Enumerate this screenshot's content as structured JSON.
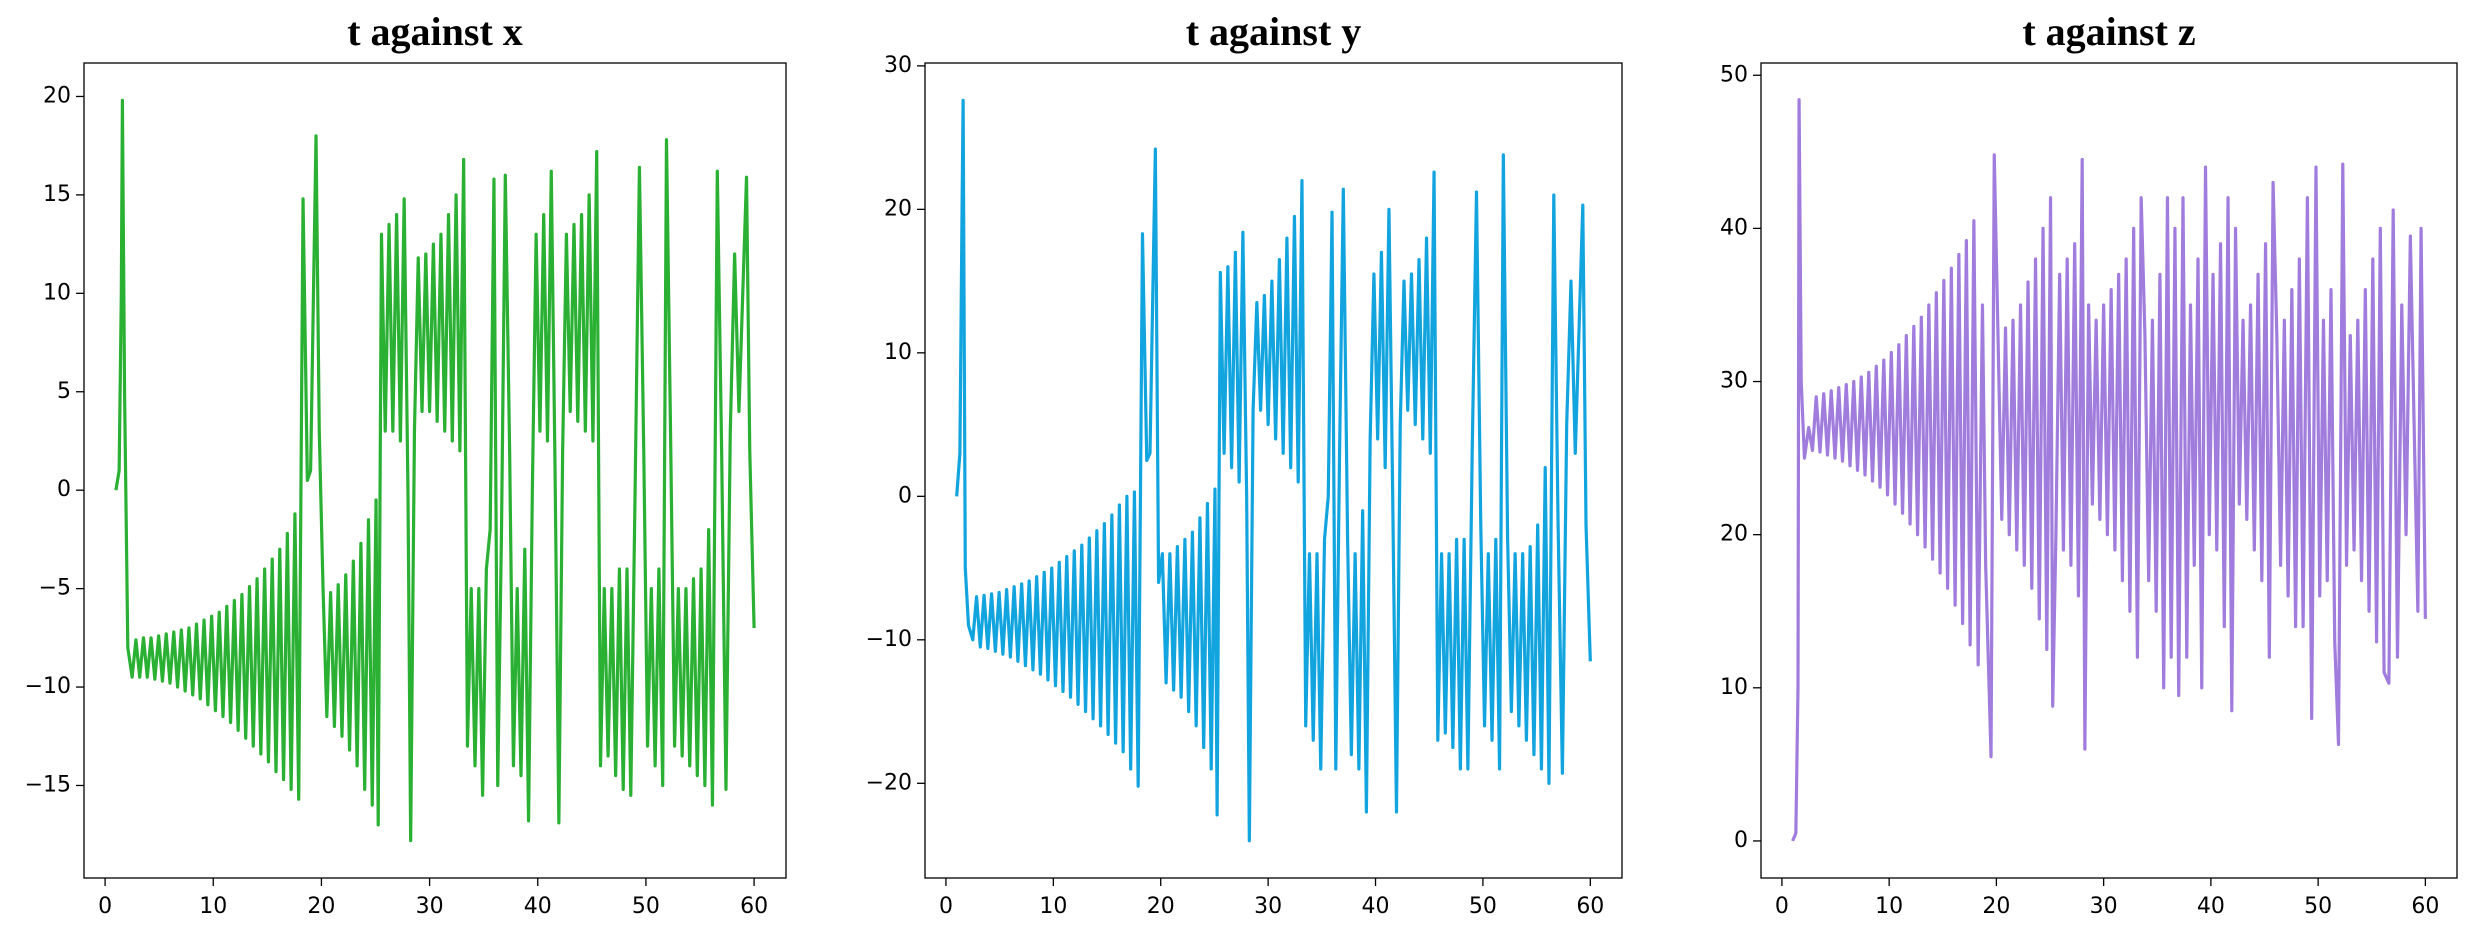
{
  "chart_data": [
    {
      "type": "line",
      "title": "t against x",
      "x": [
        1.0,
        1.3,
        1.5,
        1.6,
        1.8,
        2.1,
        2.5,
        2.85,
        3.2,
        3.55,
        3.9,
        4.25,
        4.6,
        4.95,
        5.3,
        5.65,
        6.0,
        6.35,
        6.7,
        7.05,
        7.4,
        7.75,
        8.1,
        8.45,
        8.8,
        9.15,
        9.5,
        9.85,
        10.2,
        10.55,
        10.9,
        11.25,
        11.6,
        11.95,
        12.3,
        12.65,
        13.0,
        13.35,
        13.7,
        14.05,
        14.4,
        14.75,
        15.1,
        15.45,
        15.8,
        16.15,
        16.5,
        16.85,
        17.2,
        17.55,
        17.9,
        18.3,
        18.7,
        19.0,
        19.5,
        19.8,
        20.15,
        20.5,
        20.85,
        21.2,
        21.55,
        21.9,
        22.25,
        22.6,
        22.95,
        23.3,
        23.65,
        24.0,
        24.35,
        24.7,
        25.05,
        25.25,
        25.55,
        25.9,
        26.25,
        26.6,
        26.95,
        27.3,
        27.65,
        28.0,
        28.25,
        28.6,
        28.95,
        29.3,
        29.65,
        30.0,
        30.35,
        30.7,
        31.05,
        31.4,
        31.75,
        32.1,
        32.45,
        32.8,
        33.15,
        33.5,
        33.85,
        34.2,
        34.55,
        34.9,
        35.25,
        35.6,
        35.95,
        36.3,
        36.65,
        37.0,
        37.4,
        37.75,
        38.1,
        38.45,
        38.8,
        39.15,
        39.5,
        39.85,
        40.2,
        40.55,
        40.9,
        41.25,
        41.6,
        41.95,
        42.3,
        42.65,
        43.0,
        43.35,
        43.7,
        44.05,
        44.4,
        44.75,
        45.1,
        45.45,
        45.8,
        46.15,
        46.5,
        46.85,
        47.2,
        47.55,
        47.9,
        48.25,
        48.6,
        49.0,
        49.4,
        49.8,
        50.15,
        50.5,
        50.85,
        51.2,
        51.55,
        51.9,
        52.3,
        52.65,
        53.0,
        53.35,
        53.7,
        54.05,
        54.4,
        54.75,
        55.1,
        55.45,
        55.8,
        56.15,
        56.6,
        57.0,
        57.4,
        57.8,
        58.2,
        58.6,
        59.3,
        59.6,
        60.0
      ],
      "series": [
        {
          "color": "#2ab033",
          "values": [
            0,
            1,
            10,
            19.8,
            5,
            -8,
            -9.5,
            -7.6,
            -9.5,
            -7.5,
            -9.5,
            -7.5,
            -9.6,
            -7.4,
            -9.7,
            -7.3,
            -9.8,
            -7.2,
            -10.0,
            -7.1,
            -10.2,
            -7.0,
            -10.4,
            -6.8,
            -10.6,
            -6.6,
            -10.9,
            -6.4,
            -11.2,
            -6.2,
            -11.5,
            -5.9,
            -11.8,
            -5.6,
            -12.2,
            -5.3,
            -12.6,
            -4.9,
            -13.0,
            -4.5,
            -13.4,
            -4.0,
            -13.8,
            -3.5,
            -14.3,
            -3.0,
            -14.7,
            -2.2,
            -15.2,
            -1.2,
            -15.7,
            14.8,
            0.5,
            1,
            18,
            3,
            -5,
            -11.5,
            -5.2,
            -12,
            -4.8,
            -12.5,
            -4.3,
            -13.2,
            -3.6,
            -14,
            -2.7,
            -15.2,
            -1.5,
            -16,
            -0.5,
            -17,
            13,
            3,
            13.5,
            3,
            14,
            2.5,
            14.8,
            0,
            -17.8,
            3,
            11.8,
            4,
            12,
            4,
            12.5,
            3.5,
            13,
            3,
            14,
            2.5,
            15,
            2,
            16.8,
            -13,
            -5,
            -14,
            -5,
            -15.5,
            -4,
            -2,
            15.8,
            -15,
            -2,
            16,
            2,
            -14,
            -5,
            -14.5,
            -3,
            -16.8,
            0,
            13,
            3,
            14,
            2.5,
            16.2,
            1,
            -16.9,
            2,
            13,
            4,
            13.5,
            3.5,
            14,
            3,
            15,
            2.5,
            17.2,
            -14,
            -5,
            -13.5,
            -5,
            -14.5,
            -4,
            -15.2,
            -4,
            -15.5,
            0,
            16.4,
            2,
            -13,
            -5,
            -14,
            -4,
            -15,
            17.8,
            2,
            -13,
            -5,
            -13.5,
            -5,
            -14,
            -4.5,
            -14.5,
            -4,
            -15,
            -2,
            -16,
            16.2,
            2,
            -15.2,
            3,
            12,
            4,
            15.9,
            2,
            -7
          ]
        }
      ],
      "xlim": [
        -1.95,
        62.95
      ],
      "ylim": [
        -19.7,
        21.7
      ],
      "xticks": [
        0,
        10,
        20,
        30,
        40,
        50,
        60
      ],
      "yticks": [
        {
          "value": -15,
          "label": "−15"
        },
        {
          "value": -10,
          "label": "−10"
        },
        {
          "value": -5,
          "label": "−5"
        },
        0,
        5,
        10,
        15,
        20
      ]
    },
    {
      "type": "line",
      "title": "t against y",
      "x": [
        1.0,
        1.3,
        1.5,
        1.6,
        1.8,
        2.1,
        2.5,
        2.85,
        3.2,
        3.55,
        3.9,
        4.25,
        4.6,
        4.95,
        5.3,
        5.65,
        6.0,
        6.35,
        6.7,
        7.05,
        7.4,
        7.75,
        8.1,
        8.45,
        8.8,
        9.15,
        9.5,
        9.85,
        10.2,
        10.55,
        10.9,
        11.25,
        11.6,
        11.95,
        12.3,
        12.65,
        13.0,
        13.35,
        13.7,
        14.05,
        14.4,
        14.75,
        15.1,
        15.45,
        15.8,
        16.15,
        16.5,
        16.85,
        17.2,
        17.55,
        17.9,
        18.3,
        18.7,
        19.0,
        19.5,
        19.8,
        20.15,
        20.5,
        20.85,
        21.2,
        21.55,
        21.9,
        22.25,
        22.6,
        22.95,
        23.3,
        23.65,
        24.0,
        24.35,
        24.7,
        25.05,
        25.25,
        25.55,
        25.9,
        26.25,
        26.6,
        26.95,
        27.3,
        27.65,
        28.0,
        28.25,
        28.6,
        28.95,
        29.3,
        29.65,
        30.0,
        30.35,
        30.7,
        31.05,
        31.4,
        31.75,
        32.1,
        32.45,
        32.8,
        33.15,
        33.5,
        33.85,
        34.2,
        34.55,
        34.9,
        35.25,
        35.6,
        35.95,
        36.3,
        36.65,
        37.0,
        37.4,
        37.75,
        38.1,
        38.45,
        38.8,
        39.15,
        39.5,
        39.85,
        40.2,
        40.55,
        40.9,
        41.25,
        41.6,
        41.95,
        42.3,
        42.65,
        43.0,
        43.35,
        43.7,
        44.05,
        44.4,
        44.75,
        45.1,
        45.45,
        45.8,
        46.15,
        46.5,
        46.85,
        47.2,
        47.55,
        47.9,
        48.25,
        48.6,
        49.0,
        49.4,
        49.8,
        50.15,
        50.5,
        50.85,
        51.2,
        51.55,
        51.9,
        52.3,
        52.65,
        53.0,
        53.35,
        53.7,
        54.05,
        54.4,
        54.75,
        55.1,
        55.45,
        55.8,
        56.15,
        56.6,
        57.0,
        57.4,
        57.8,
        58.2,
        58.6,
        59.3,
        59.6,
        60.0
      ],
      "series": [
        {
          "color": "#12a4de",
          "values": [
            0,
            3,
            20,
            27.6,
            -5,
            -9,
            -10,
            -7.0,
            -10.5,
            -6.9,
            -10.6,
            -6.8,
            -10.8,
            -6.7,
            -11.0,
            -6.5,
            -11.2,
            -6.3,
            -11.5,
            -6.1,
            -11.8,
            -5.9,
            -12.1,
            -5.6,
            -12.4,
            -5.3,
            -12.8,
            -5.0,
            -13.2,
            -4.6,
            -13.6,
            -4.2,
            -14.0,
            -3.8,
            -14.5,
            -3.4,
            -15.0,
            -2.9,
            -15.5,
            -2.4,
            -16.0,
            -1.9,
            -16.6,
            -1.3,
            -17.2,
            -0.6,
            -17.8,
            0.0,
            -19.0,
            0.3,
            -20.2,
            18.3,
            2.5,
            3,
            24.2,
            -6,
            -4,
            -13,
            -4,
            -13.5,
            -3.5,
            -14,
            -3,
            -15,
            -2.5,
            -16,
            -1.5,
            -17.5,
            -0.5,
            -19,
            0.5,
            -22.2,
            15.6,
            3,
            16,
            2,
            17,
            1,
            18.4,
            0,
            -24,
            6,
            13.5,
            6,
            14,
            5,
            15,
            4,
            16.5,
            3,
            18,
            2,
            19.5,
            1,
            22,
            -16,
            -4,
            -17,
            -4,
            -19,
            -3,
            0,
            19.8,
            -19,
            3,
            21.4,
            -3,
            -18,
            -4,
            -19,
            -1,
            -22,
            4,
            15.5,
            4,
            17,
            2,
            20,
            0,
            -22,
            5,
            15,
            6,
            15.5,
            5,
            16.5,
            4,
            18,
            3,
            22.6,
            -17,
            -4,
            -16.5,
            -4,
            -17.5,
            -3,
            -19,
            -3,
            -19,
            3,
            21.2,
            -2,
            -16,
            -4,
            -17,
            -3,
            -19,
            23.8,
            -3,
            -15,
            -4,
            -16,
            -4,
            -17,
            -3.5,
            -18,
            -2,
            -19,
            2,
            -20,
            21,
            -2,
            -19.3,
            5,
            15,
            3,
            20.3,
            -2,
            -11.5
          ]
        }
      ],
      "xlim": [
        -1.95,
        62.95
      ],
      "ylim": [
        -26.6,
        30.2
      ],
      "xticks": [
        0,
        10,
        20,
        30,
        40,
        50,
        60
      ],
      "yticks": [
        {
          "value": -20,
          "label": "−20"
        },
        {
          "value": -10,
          "label": "−10"
        },
        0,
        10,
        20,
        30
      ]
    },
    {
      "type": "line",
      "title": "t against z",
      "x": [
        1.0,
        1.3,
        1.5,
        1.6,
        1.8,
        2.1,
        2.5,
        2.85,
        3.2,
        3.55,
        3.9,
        4.25,
        4.6,
        4.95,
        5.3,
        5.65,
        6.0,
        6.35,
        6.7,
        7.05,
        7.4,
        7.75,
        8.1,
        8.45,
        8.8,
        9.15,
        9.5,
        9.85,
        10.2,
        10.55,
        10.9,
        11.25,
        11.6,
        11.95,
        12.3,
        12.65,
        13.0,
        13.35,
        13.7,
        14.05,
        14.4,
        14.75,
        15.1,
        15.45,
        15.8,
        16.15,
        16.5,
        16.85,
        17.2,
        17.55,
        17.9,
        18.3,
        18.7,
        19.0,
        19.5,
        19.8,
        20.15,
        20.5,
        20.85,
        21.2,
        21.55,
        21.9,
        22.25,
        22.6,
        22.95,
        23.3,
        23.65,
        24.0,
        24.35,
        24.7,
        25.05,
        25.25,
        25.55,
        25.9,
        26.25,
        26.6,
        26.95,
        27.3,
        27.65,
        28.0,
        28.25,
        28.6,
        28.95,
        29.3,
        29.65,
        30.0,
        30.35,
        30.7,
        31.05,
        31.4,
        31.75,
        32.1,
        32.45,
        32.8,
        33.15,
        33.5,
        33.85,
        34.2,
        34.55,
        34.9,
        35.25,
        35.6,
        35.95,
        36.3,
        36.65,
        37.0,
        37.4,
        37.75,
        38.1,
        38.45,
        38.8,
        39.15,
        39.5,
        39.85,
        40.2,
        40.55,
        40.9,
        41.25,
        41.6,
        41.95,
        42.3,
        42.65,
        43.0,
        43.35,
        43.7,
        44.05,
        44.4,
        44.75,
        45.1,
        45.45,
        45.8,
        46.15,
        46.5,
        46.85,
        47.2,
        47.55,
        47.9,
        48.25,
        48.6,
        49.0,
        49.4,
        49.8,
        50.15,
        50.5,
        50.85,
        51.2,
        51.55,
        51.9,
        52.3,
        52.65,
        53.0,
        53.35,
        53.7,
        54.05,
        54.4,
        54.75,
        55.1,
        55.45,
        55.8,
        56.15,
        56.6,
        57.0,
        57.4,
        57.8,
        58.2,
        58.6,
        59.3,
        59.6,
        60.0
      ],
      "series": [
        {
          "color": "#a07cdc",
          "values": [
            0,
            0.5,
            10,
            48.4,
            30,
            25,
            27,
            25.5,
            29,
            25.4,
            29.2,
            25.2,
            29.4,
            25,
            29.6,
            24.8,
            29.8,
            24.5,
            30,
            24.2,
            30.3,
            23.9,
            30.6,
            23.5,
            31,
            23.1,
            31.4,
            22.6,
            31.9,
            22,
            32.4,
            21.4,
            33,
            20.7,
            33.6,
            20,
            34.2,
            19.2,
            35,
            18.4,
            35.8,
            17.5,
            36.6,
            16.5,
            37.4,
            15.4,
            38.3,
            14.2,
            39.2,
            12.8,
            40.5,
            11.5,
            35,
            18,
            5.5,
            44.8,
            33,
            21,
            33.5,
            20,
            34,
            19,
            35,
            18,
            36.5,
            16.5,
            38,
            14.5,
            40,
            12.5,
            42,
            8.8,
            20,
            37,
            19,
            38,
            18,
            39,
            16,
            44.5,
            6,
            35,
            22,
            34,
            21,
            35,
            20,
            36,
            19,
            37,
            17,
            38,
            15,
            40,
            12,
            42,
            33,
            17,
            34,
            15,
            37,
            10,
            42,
            12,
            40,
            9.5,
            42,
            12,
            35,
            18,
            38,
            10,
            44,
            20,
            37,
            19,
            39,
            14,
            42,
            8.5,
            40,
            22,
            34,
            21,
            35,
            19,
            37,
            17,
            39,
            12,
            43,
            33,
            18,
            34,
            16,
            36,
            14,
            38,
            14,
            42,
            8,
            44,
            16,
            34,
            17,
            36,
            13,
            6.3,
            44.2,
            18,
            33,
            19,
            34,
            17,
            36,
            15,
            38,
            13,
            40,
            11,
            10.3,
            41.2,
            12,
            35,
            20,
            39.5,
            15,
            40,
            14.5
          ]
        }
      ],
      "xlim": [
        -1.95,
        62.95
      ],
      "ylim": [
        -2.42,
        50.8
      ],
      "xticks": [
        0,
        10,
        20,
        30,
        40,
        50,
        60
      ],
      "yticks": [
        0,
        10,
        20,
        30,
        40,
        50
      ]
    }
  ]
}
